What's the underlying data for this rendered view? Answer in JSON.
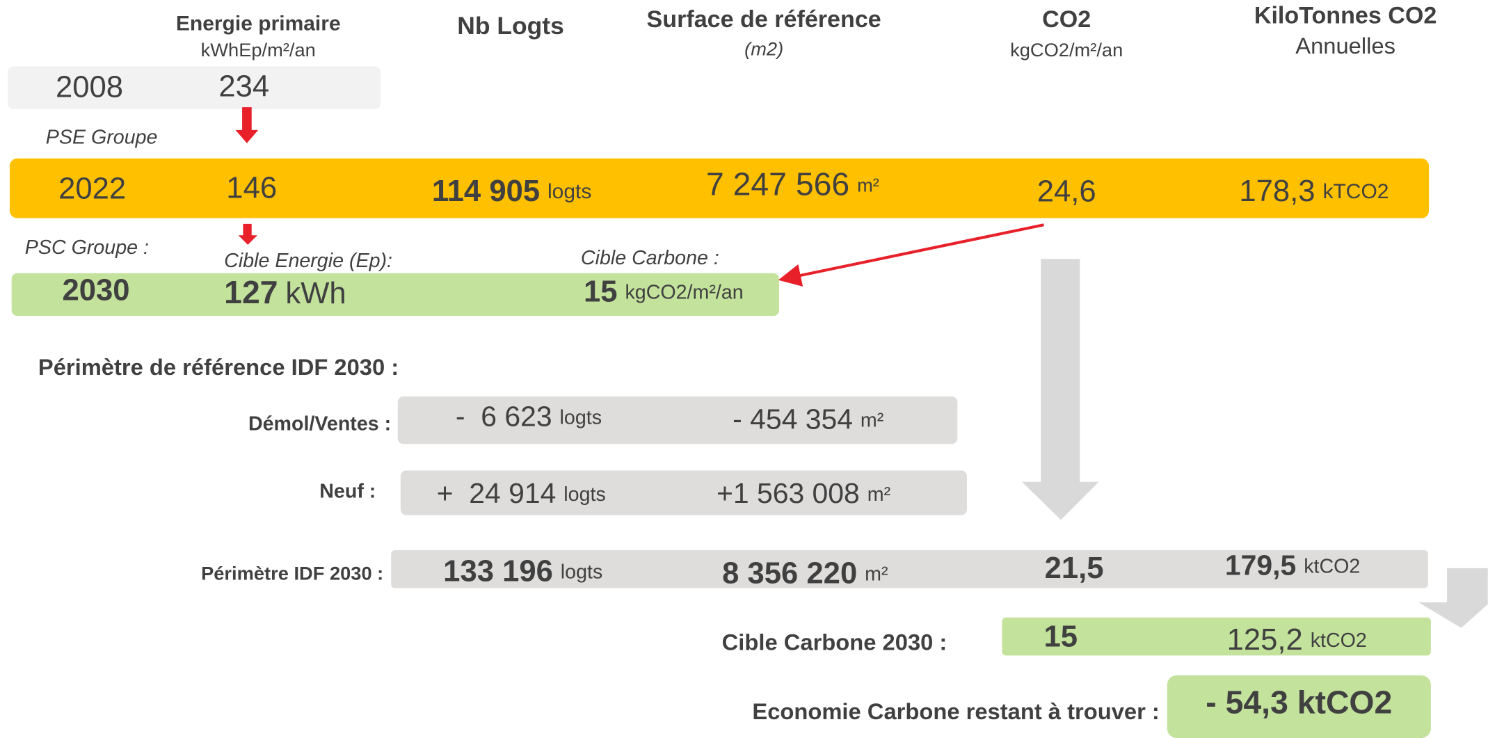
{
  "headers": {
    "energie": {
      "title": "Energie primaire",
      "unit": "kWhEp/m²/an"
    },
    "logts": "Nb Logts",
    "surface": {
      "title": "Surface de référence",
      "unit": "(m2)"
    },
    "co2": {
      "title": "CO2",
      "unit": "kgCO2/m²/an"
    },
    "kilotonnes": {
      "title": "KiloTonnes CO2",
      "unit": "Annuelles"
    }
  },
  "row2008": {
    "year": "2008",
    "energie": "234"
  },
  "pse_label": "PSE Groupe",
  "row2022": {
    "year": "2022",
    "energie": "146",
    "logts": "114 905",
    "logts_unit": "logts",
    "surface": "7 247 566",
    "surface_unit": "m²",
    "co2": "24,6",
    "kt": "178,3",
    "kt_unit": "kTCO2"
  },
  "psc_label": "PSC Groupe :",
  "cible_energie_label": "Cible Energie (Ep):",
  "cible_carbone_label": "Cible Carbone :",
  "row2030": {
    "year": "2030",
    "energie": "127",
    "energie_unit": "kWh",
    "carbone": "15",
    "carbone_unit": "kgCO2/m²/an"
  },
  "perimetre_title": "Périmètre de référence IDF 2030 :",
  "demol": {
    "label": "Démol/Ventes :",
    "logts": "-  6 623",
    "logts_unit": "logts",
    "surface": "- 454 354",
    "surface_unit": "m²"
  },
  "neuf": {
    "label": "Neuf :",
    "logts": "+  24 914",
    "logts_unit": "logts",
    "surface": "+1 563 008",
    "surface_unit": "m²"
  },
  "idf": {
    "label": "Périmètre IDF 2030 :",
    "logts": "133 196",
    "logts_unit": "logts",
    "surface": "8 356 220",
    "surface_unit": "m²",
    "co2": "21,5",
    "kt": "179,5",
    "kt_unit": "ktCO2"
  },
  "cible2030": {
    "label": "Cible Carbone 2030 :",
    "co2": "15",
    "kt": "125,2",
    "kt_unit": "ktCO2"
  },
  "economie": {
    "label": "Economie Carbone restant à trouver :",
    "value": "- 54,3 ktCO2"
  }
}
